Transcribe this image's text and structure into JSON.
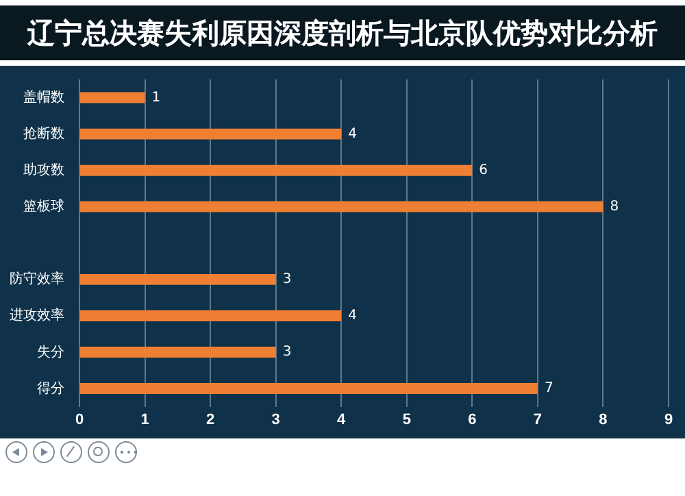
{
  "chart_data": {
    "type": "bar",
    "orientation": "horizontal",
    "title": "辽宁总决赛失利原因深度剖析与北京队优势对比分析",
    "categories": [
      "盖帽数",
      "抢断数",
      "助攻数",
      "篮板球",
      null,
      "防守效率",
      "进攻效率",
      "失分",
      "得分"
    ],
    "values": [
      1,
      4,
      6,
      8,
      null,
      3,
      4,
      3,
      7
    ],
    "color": "#ee7f33",
    "xlim": [
      0,
      9
    ],
    "xticks": [
      0,
      1,
      2,
      3,
      4,
      5,
      6,
      7,
      8,
      9
    ],
    "grid": "x",
    "data_labels": true
  }
}
